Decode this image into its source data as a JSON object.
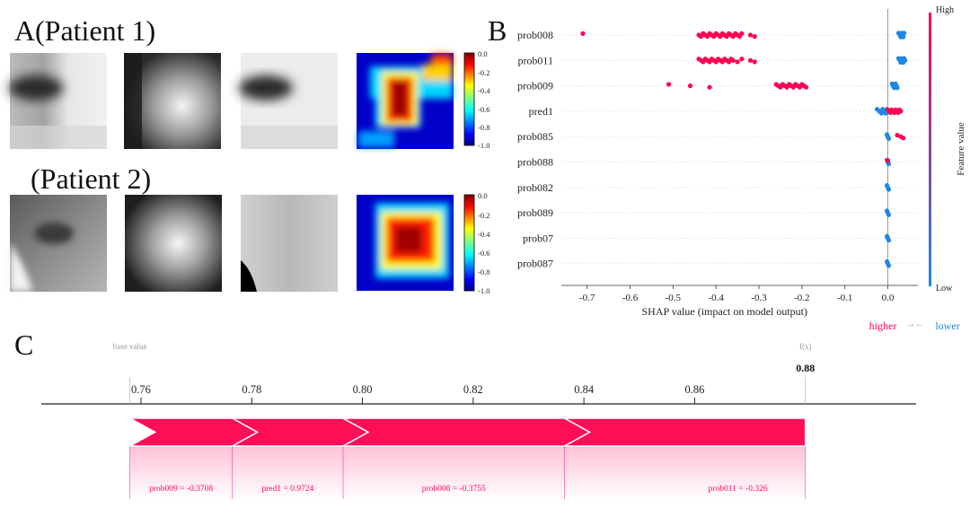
{
  "panel_a": {
    "label": "A",
    "rows": [
      {
        "title": "(Patient 1)",
        "colorbar_ticks": [
          "0.0",
          "-0.2",
          "-0.4",
          "-0.6",
          "-0.8",
          "-1.0"
        ]
      },
      {
        "title": "(Patient 2)",
        "colorbar_ticks": [
          "0.0",
          "-0.2",
          "-0.4",
          "-0.6",
          "-0.8",
          "-1.0"
        ]
      }
    ]
  },
  "panel_b": {
    "label": "B"
  },
  "panel_c": {
    "label": "C"
  },
  "colors": {
    "high": "#ff0052",
    "low": "#1e88e5",
    "force_red": "#ff0d57"
  },
  "chart_data": [
    {
      "type": "scatter",
      "subtype": "shap-beeswarm",
      "title": "",
      "xlabel": "SHAP value (impact on model output)",
      "ylabel": "",
      "xlim": [
        -0.76,
        0.07
      ],
      "xticks": [
        -0.7,
        -0.6,
        -0.5,
        -0.4,
        -0.3,
        -0.2,
        -0.1,
        0.0
      ],
      "tick_labels": [
        "-0.7",
        "-0.6",
        "-0.5",
        "-0.4",
        "-0.3",
        "-0.2",
        "-0.1",
        "0.0"
      ],
      "features": [
        "prob008",
        "prob011",
        "prob009",
        "pred1",
        "prob085",
        "prob088",
        "prob082",
        "prob089",
        "prob07",
        "prob087"
      ],
      "colorbar": {
        "title": "Feature value",
        "high_label": "High",
        "low_label": "Low"
      },
      "legend": {
        "higher": "higher",
        "lower": "lower",
        "arrows": "→←"
      },
      "series": [
        {
          "feature": "prob008",
          "high_x": [
            -0.71,
            -0.44,
            -0.435,
            -0.43,
            -0.425,
            -0.42,
            -0.415,
            -0.41,
            -0.405,
            -0.4,
            -0.395,
            -0.39,
            -0.385,
            -0.38,
            -0.375,
            -0.37,
            -0.365,
            -0.36,
            -0.355,
            -0.35,
            -0.345,
            -0.34,
            -0.32,
            -0.31
          ],
          "low_x": [
            0.025,
            0.028,
            0.03,
            0.032,
            0.034,
            0.036,
            0.038
          ]
        },
        {
          "feature": "prob011",
          "high_x": [
            -0.44,
            -0.435,
            -0.43,
            -0.425,
            -0.42,
            -0.415,
            -0.41,
            -0.405,
            -0.4,
            -0.395,
            -0.39,
            -0.385,
            -0.38,
            -0.375,
            -0.37,
            -0.365,
            -0.36,
            -0.35,
            -0.34,
            -0.32,
            -0.31
          ],
          "low_x": [
            0.025,
            0.028,
            0.03,
            0.032,
            0.034,
            0.036,
            0.038,
            0.04
          ]
        },
        {
          "feature": "prob009",
          "high_x": [
            -0.51,
            -0.46,
            -0.415,
            -0.26,
            -0.255,
            -0.25,
            -0.245,
            -0.24,
            -0.235,
            -0.23,
            -0.225,
            -0.22,
            -0.215,
            -0.21,
            -0.205,
            -0.2,
            -0.195,
            -0.19
          ],
          "low_x": [
            0.01,
            0.012,
            0.015,
            0.018,
            0.02,
            0.022
          ]
        },
        {
          "feature": "pred1",
          "high_x": [
            0.0,
            0.003,
            0.006,
            0.009,
            0.012,
            0.015,
            0.018,
            0.021,
            0.024,
            0.027,
            0.03
          ],
          "low_x": [
            -0.025,
            -0.02,
            -0.015,
            -0.012,
            -0.008,
            -0.005,
            -0.002
          ]
        },
        {
          "feature": "prob085",
          "high_x": [
            0.022,
            0.03,
            0.036
          ],
          "low_x": [
            -0.002,
            0.0,
            0.002
          ]
        },
        {
          "feature": "prob088",
          "high_x": [
            0.0
          ],
          "low_x": [
            -0.002,
            0.0,
            0.002
          ]
        },
        {
          "feature": "prob082",
          "high_x": [],
          "low_x": [
            -0.002,
            0.0,
            0.002
          ]
        },
        {
          "feature": "prob089",
          "high_x": [],
          "low_x": [
            -0.002,
            0.0,
            0.002
          ]
        },
        {
          "feature": "prob07",
          "high_x": [],
          "low_x": [
            -0.002,
            0.0,
            0.002
          ]
        },
        {
          "feature": "prob087",
          "high_x": [],
          "low_x": [
            -0.002,
            0.0,
            0.002
          ]
        }
      ]
    },
    {
      "type": "bar",
      "subtype": "shap-force-plot",
      "title": "",
      "base_value_label": "base value",
      "fx_label": "f(x)",
      "base_value": 0.758,
      "output_value": 0.88,
      "output_label": "0.88",
      "xlim": [
        0.742,
        0.9
      ],
      "xticks": [
        0.76,
        0.78,
        0.8,
        0.82,
        0.84,
        0.86
      ],
      "tick_labels": [
        "0.76",
        "0.78",
        "0.80",
        "0.82",
        "0.84",
        "0.86"
      ],
      "segments": [
        {
          "label": "prob009 = -0.3708",
          "start": 0.758,
          "end": 0.7765
        },
        {
          "label": "pred1 = 0.9724",
          "start": 0.7765,
          "end": 0.7965
        },
        {
          "label": "prob008 = -0.3755",
          "start": 0.7965,
          "end": 0.8365
        },
        {
          "label": "prob011 = -0.326",
          "start": 0.8365,
          "end": 0.88
        }
      ]
    }
  ]
}
